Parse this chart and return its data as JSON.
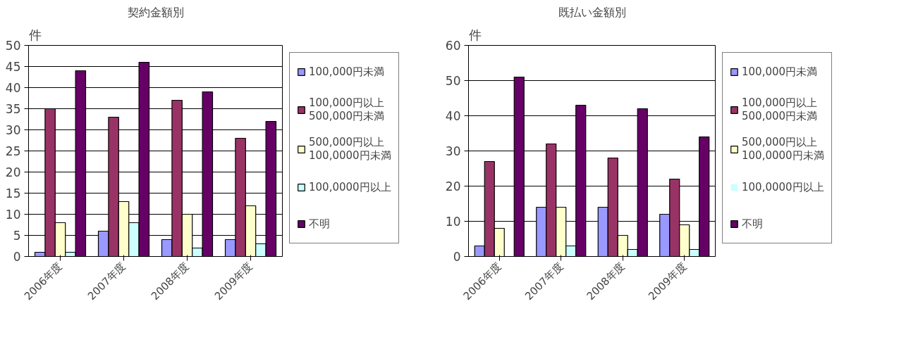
{
  "chart_data": [
    {
      "type": "bar",
      "title": "契約金額別",
      "ylabel": "件",
      "categories": [
        "2006年度",
        "2007年度",
        "2008年度",
        "2009年度"
      ],
      "series": [
        {
          "name": "100,000円未満",
          "color": "#9999ff",
          "values": [
            1,
            6,
            4,
            4
          ]
        },
        {
          "name": "100,000円以上\n500,000円未満",
          "color": "#993366",
          "values": [
            35,
            33,
            37,
            28
          ]
        },
        {
          "name": "500,000円以上\n100,0000円未満",
          "color": "#ffffcc",
          "values": [
            8,
            13,
            10,
            12
          ]
        },
        {
          "name": "100,0000円以上",
          "color": "#ccffff",
          "values": [
            1,
            8,
            2,
            3
          ]
        },
        {
          "name": "不明",
          "color": "#660066",
          "values": [
            44,
            46,
            39,
            32
          ]
        }
      ],
      "ylim": [
        0,
        50
      ],
      "yticks": [
        0,
        5,
        10,
        15,
        20,
        25,
        30,
        35,
        40,
        45,
        50
      ],
      "grid": "y",
      "legend": "right"
    },
    {
      "type": "bar",
      "title": "既払い金額別",
      "ylabel": "件",
      "categories": [
        "2006年度",
        "2007年度",
        "2008年度",
        "2009年度"
      ],
      "series": [
        {
          "name": "100,000円未満",
          "color": "#9999ff",
          "values": [
            3,
            14,
            14,
            12
          ]
        },
        {
          "name": "100,000円以上\n500,000円未満",
          "color": "#993366",
          "values": [
            27,
            32,
            28,
            22
          ]
        },
        {
          "name": "500,000円以上\n100,0000円未満",
          "color": "#ffffcc",
          "values": [
            8,
            14,
            6,
            9
          ]
        },
        {
          "name": "100,0000円以上",
          "color": "#ccffff",
          "values": [
            0,
            3,
            2,
            2
          ]
        },
        {
          "name": "不明",
          "color": "#660066",
          "values": [
            51,
            43,
            42,
            34
          ]
        }
      ],
      "ylim": [
        0,
        60
      ],
      "yticks": [
        0,
        10,
        20,
        30,
        40,
        50,
        60
      ],
      "grid": "y",
      "legend": "right"
    }
  ]
}
